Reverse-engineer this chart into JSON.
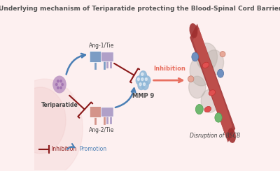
{
  "title": "Underlying mechanism of Teriparatide protecting the Blood-Spinal Cord Barrier",
  "title_fontsize": 6.5,
  "background_color": "#fdf0f0",
  "fig_width": 4.0,
  "fig_height": 2.45,
  "labels": {
    "teriparatide": "Teriparatide",
    "ang1": "Ang-1/Tie",
    "ang2": "Ang-2/Tie",
    "mmp9": "MMP 9",
    "inhibition_arrow": "Inhibition",
    "disruption": "Disruption of BSCB",
    "legend_inhibition": "Inhibition",
    "legend_promotion": "Promotion"
  },
  "colors": {
    "title_color": "#555555",
    "blue_arrow": "#4a7fb5",
    "dark_red_arrow": "#8b1a1a",
    "salmon_arrow": "#e87060",
    "pink_bg": "#fce8e8",
    "receptor_blue": "#7b9cc4",
    "receptor_pink": "#d4948a",
    "receptor_purple": "#b0a0c8",
    "teriparatide_purple": "#c4a0c8",
    "mmp9_blue": "#90b8d8",
    "vessel_red": "#c0504d",
    "vessel_dark": "#a03030",
    "text_dark": "#444444",
    "text_red": "#c0504d",
    "text_blue": "#4a7fb5"
  }
}
